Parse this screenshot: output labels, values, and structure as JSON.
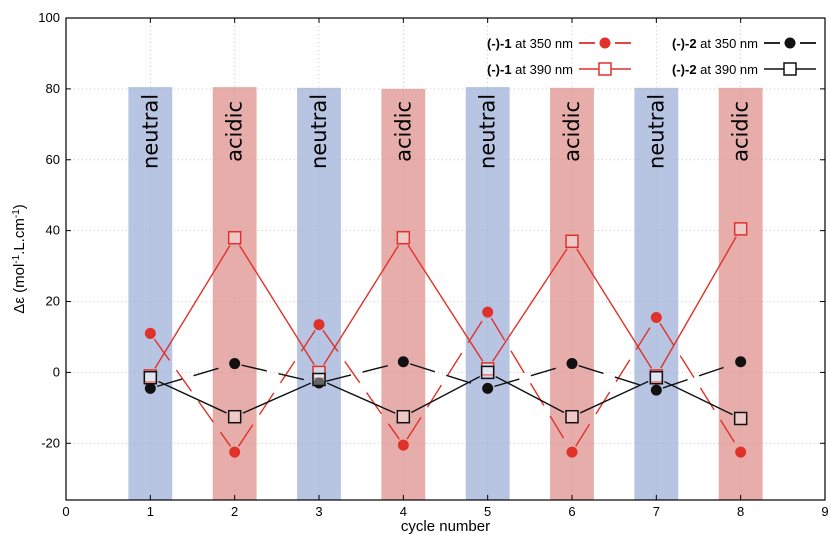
{
  "chart_data": {
    "type": "scatter",
    "xlabel": "cycle number",
    "ylabel_main": "Δε (mol",
    "ylabel_sup1": "-1",
    "ylabel_mid": ".L.cm",
    "ylabel_sup2": "-1",
    "ylabel_end": ")",
    "xlim": [
      0,
      9
    ],
    "ylim": [
      -36,
      100
    ],
    "x_ticks": [
      0,
      1,
      2,
      3,
      4,
      5,
      6,
      7,
      8,
      9
    ],
    "y_ticks": [
      -20,
      0,
      20,
      40,
      60,
      80,
      100
    ],
    "grid": true,
    "legend_position": "top-right",
    "bands": [
      {
        "x": 1,
        "label": "neutral",
        "top": 80.5,
        "color": "#8b9fd0"
      },
      {
        "x": 2,
        "label": "acidic",
        "top": 80.5,
        "color": "#d97b78"
      },
      {
        "x": 3,
        "label": "neutral",
        "top": 80.3,
        "color": "#8b9fd0"
      },
      {
        "x": 4,
        "label": "acidic",
        "top": 80.0,
        "color": "#d97b78"
      },
      {
        "x": 5,
        "label": "neutral",
        "top": 80.5,
        "color": "#8b9fd0"
      },
      {
        "x": 6,
        "label": "acidic",
        "top": 80.3,
        "color": "#d97b78"
      },
      {
        "x": 7,
        "label": "neutral",
        "top": 80.3,
        "color": "#8b9fd0"
      },
      {
        "x": 8,
        "label": "acidic",
        "top": 80.3,
        "color": "#d97b78"
      }
    ],
    "series": [
      {
        "name_bold": "(-)-1",
        "name_rest": " at 350 nm",
        "color": "#e0322a",
        "marker": "filled-circle",
        "line": "dashed",
        "x": [
          1,
          2,
          3,
          4,
          5,
          6,
          7,
          8
        ],
        "values": [
          11,
          -22.5,
          13.5,
          -20.5,
          17,
          -22.5,
          15.5,
          -22.5
        ]
      },
      {
        "name_bold": "(-)-1",
        "name_rest": " at 390 nm",
        "color": "#e0322a",
        "marker": "open-square",
        "line": "solid",
        "x": [
          1,
          2,
          3,
          4,
          5,
          6,
          7,
          8
        ],
        "values": [
          -1,
          38,
          0,
          38,
          1,
          37,
          -1,
          40.5
        ]
      },
      {
        "name_bold": "(-)-2",
        "name_rest": " at 350 nm",
        "color": "#111111",
        "marker": "filled-circle",
        "line": "dashed",
        "x": [
          1,
          2,
          3,
          4,
          5,
          6,
          7,
          8
        ],
        "values": [
          -4.5,
          2.5,
          -3,
          3,
          -4.5,
          2.5,
          -5,
          3
        ]
      },
      {
        "name_bold": "(-)-2",
        "name_rest": " at 390 nm",
        "color": "#111111",
        "marker": "open-square",
        "line": "solid",
        "x": [
          1,
          2,
          3,
          4,
          5,
          6,
          7,
          8
        ],
        "values": [
          -1.5,
          -12.5,
          -2,
          -12.5,
          0,
          -12.5,
          -1.5,
          -13
        ]
      }
    ]
  }
}
